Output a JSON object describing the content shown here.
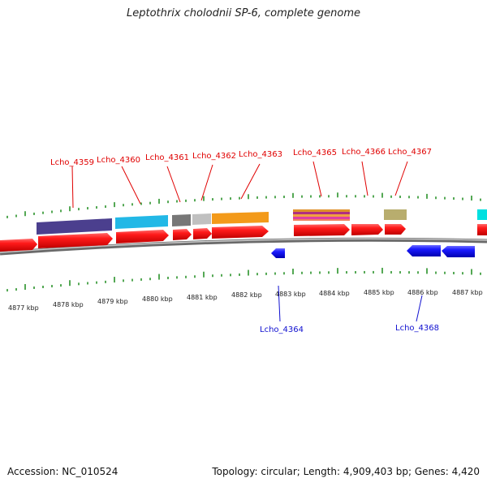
{
  "header": {
    "title": "Leptothrix cholodnii SP-6, complete genome"
  },
  "footer": {
    "accession": "Accession: NC_010524",
    "summary": "Topology: circular; Length: 4,909,403 bp; Genes: 4,420"
  },
  "map": {
    "kbp_labels": [
      "4877 kbp",
      "4878 kbp",
      "4879 kbp",
      "4880 kbp",
      "4881 kbp",
      "4882 kbp",
      "4883 kbp",
      "4884 kbp",
      "4885 kbp",
      "4886 kbp",
      "4887 kbp"
    ],
    "forward_genes": [
      "Lcho_4359",
      "Lcho_4360",
      "Lcho_4361",
      "Lcho_4362",
      "Lcho_4363",
      "Lcho_4365",
      "Lcho_4366",
      "Lcho_4367"
    ],
    "reverse_genes": [
      "Lcho_4364",
      "Lcho_4368"
    ],
    "colors": {
      "cds_forward": "#ff1a1a",
      "cds_reverse": "#1a1aff",
      "backbone": "#8a8a8a",
      "ticks": "#1a8a1a"
    }
  }
}
